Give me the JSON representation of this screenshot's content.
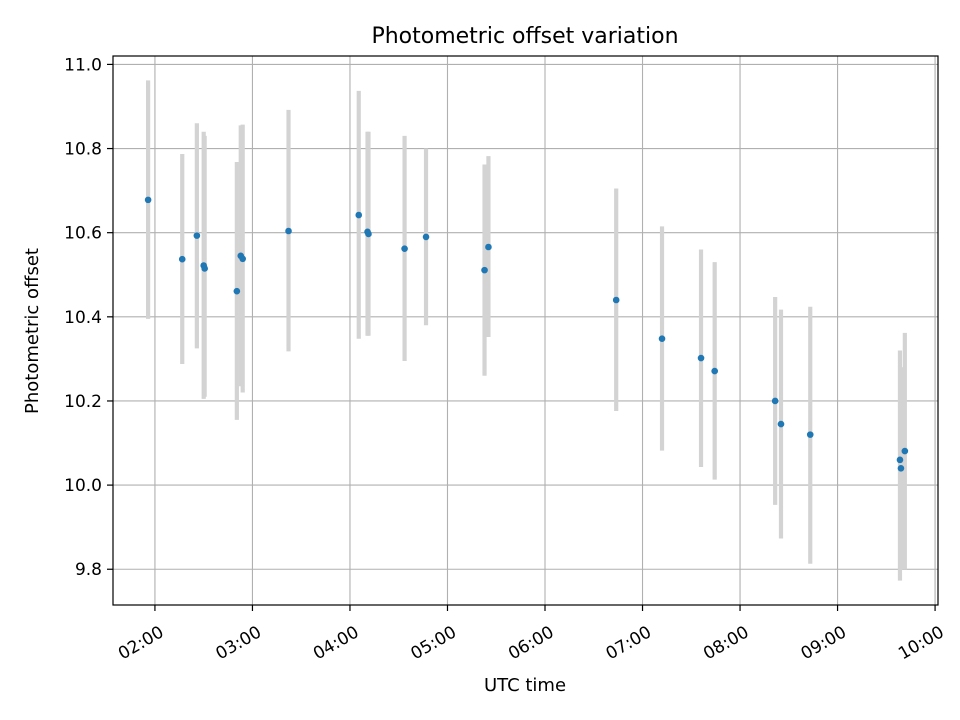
{
  "chart_data": {
    "type": "scatter",
    "title": "Photometric offset variation",
    "xlabel": "UTC time",
    "ylabel": "Photometric offset",
    "grid": true,
    "x_unit": "hours since 00:00 UTC",
    "xlim": [
      1.57,
      10.03
    ],
    "ylim": [
      9.715,
      11.02
    ],
    "x_ticks": [
      {
        "value": 2,
        "label": "02:00"
      },
      {
        "value": 3,
        "label": "03:00"
      },
      {
        "value": 4,
        "label": "04:00"
      },
      {
        "value": 5,
        "label": "05:00"
      },
      {
        "value": 6,
        "label": "06:00"
      },
      {
        "value": 7,
        "label": "07:00"
      },
      {
        "value": 8,
        "label": "08:00"
      },
      {
        "value": 9,
        "label": "09:00"
      },
      {
        "value": 10,
        "label": "10:00"
      }
    ],
    "y_ticks": [
      {
        "value": 9.8,
        "label": "9.8"
      },
      {
        "value": 10.0,
        "label": "10.0"
      },
      {
        "value": 10.2,
        "label": "10.2"
      },
      {
        "value": 10.4,
        "label": "10.4"
      },
      {
        "value": 10.6,
        "label": "10.6"
      },
      {
        "value": 10.8,
        "label": "10.8"
      },
      {
        "value": 11.0,
        "label": "11.0"
      }
    ],
    "colors": {
      "point": "#1f77b4",
      "errorbar": "#d3d3d3",
      "grid": "#b0b0b0",
      "axis": "#000000"
    },
    "points": [
      {
        "x": 1.93,
        "y": 10.678,
        "low": 10.395,
        "high": 10.962
      },
      {
        "x": 2.28,
        "y": 10.537,
        "low": 10.288,
        "high": 10.787
      },
      {
        "x": 2.43,
        "y": 10.593,
        "low": 10.325,
        "high": 10.86
      },
      {
        "x": 2.5,
        "y": 10.522,
        "low": 10.205,
        "high": 10.84
      },
      {
        "x": 2.51,
        "y": 10.515,
        "low": 10.21,
        "high": 10.83
      },
      {
        "x": 2.84,
        "y": 10.461,
        "low": 10.155,
        "high": 10.768
      },
      {
        "x": 2.88,
        "y": 10.545,
        "low": 10.235,
        "high": 10.855
      },
      {
        "x": 2.9,
        "y": 10.538,
        "low": 10.22,
        "high": 10.857
      },
      {
        "x": 3.37,
        "y": 10.604,
        "low": 10.318,
        "high": 10.892
      },
      {
        "x": 4.09,
        "y": 10.642,
        "low": 10.348,
        "high": 10.937
      },
      {
        "x": 4.18,
        "y": 10.602,
        "low": 10.355,
        "high": 10.84
      },
      {
        "x": 4.19,
        "y": 10.597,
        "low": 10.355,
        "high": 10.84
      },
      {
        "x": 4.56,
        "y": 10.562,
        "low": 10.295,
        "high": 10.83
      },
      {
        "x": 4.78,
        "y": 10.59,
        "low": 10.38,
        "high": 10.8
      },
      {
        "x": 5.38,
        "y": 10.511,
        "low": 10.26,
        "high": 10.762
      },
      {
        "x": 5.42,
        "y": 10.566,
        "low": 10.352,
        "high": 10.782
      },
      {
        "x": 6.73,
        "y": 10.44,
        "low": 10.176,
        "high": 10.705
      },
      {
        "x": 7.2,
        "y": 10.348,
        "low": 10.082,
        "high": 10.615
      },
      {
        "x": 7.6,
        "y": 10.302,
        "low": 10.043,
        "high": 10.56
      },
      {
        "x": 7.74,
        "y": 10.271,
        "low": 10.013,
        "high": 10.53
      },
      {
        "x": 8.36,
        "y": 10.2,
        "low": 9.953,
        "high": 10.447
      },
      {
        "x": 8.42,
        "y": 10.145,
        "low": 9.873,
        "high": 10.417
      },
      {
        "x": 8.72,
        "y": 10.12,
        "low": 9.813,
        "high": 10.424
      },
      {
        "x": 9.64,
        "y": 10.06,
        "low": 9.773,
        "high": 10.32
      },
      {
        "x": 9.65,
        "y": 10.04,
        "low": 9.8,
        "high": 10.28
      },
      {
        "x": 9.69,
        "y": 10.081,
        "low": 9.8,
        "high": 10.362
      }
    ]
  }
}
